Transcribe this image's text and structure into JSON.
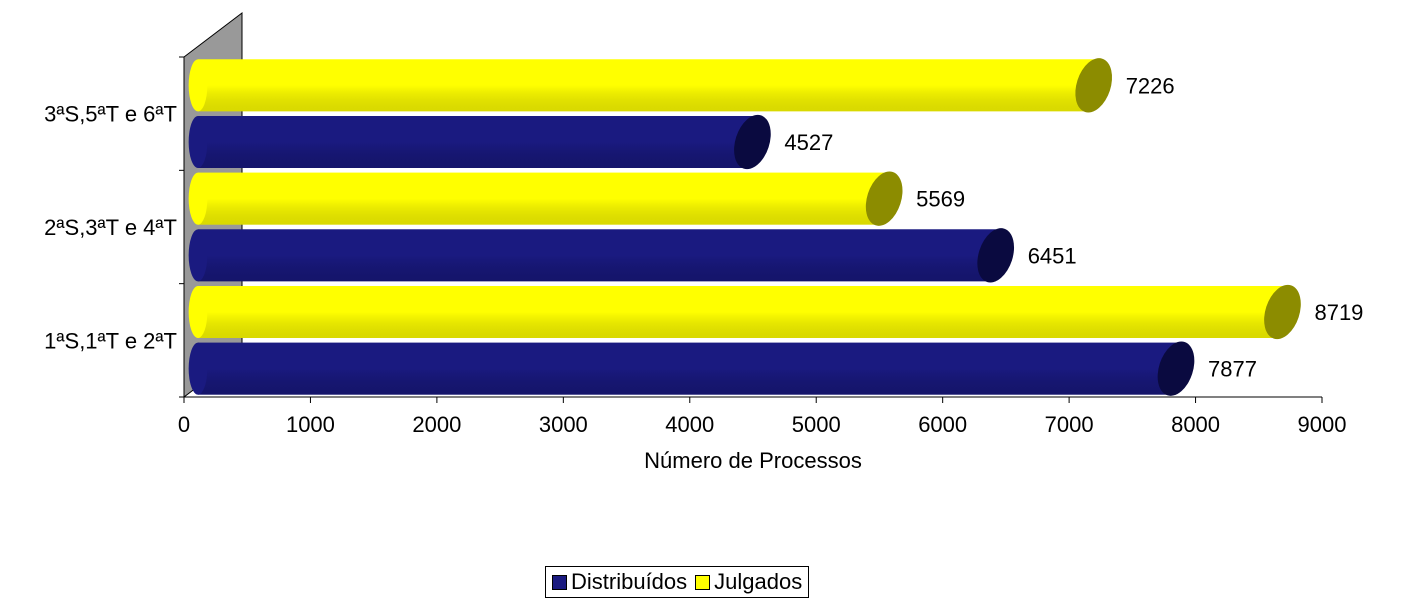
{
  "chart_data": {
    "type": "bar",
    "orientation": "horizontal",
    "style": "3d-cylinder",
    "categories": [
      "1ªS,1ªT e 2ªT",
      "2ªS,3ªT e 4ªT",
      "3ªS,5ªT e 6ªT"
    ],
    "series": [
      {
        "name": "Distribuídos",
        "values": [
          7877,
          6451,
          4527
        ],
        "color": "#1a1a80",
        "dark": "#0a0a40"
      },
      {
        "name": "Julgados",
        "values": [
          8719,
          5569,
          7226
        ],
        "color": "#ffff00",
        "dark": "#8c8c00"
      }
    ],
    "xlabel": "Número de Processos",
    "ylabel": "",
    "xlim": [
      0,
      9000
    ],
    "xticks": [
      0,
      1000,
      2000,
      3000,
      4000,
      5000,
      6000,
      7000,
      8000,
      9000
    ],
    "grid": false,
    "legend_position": "bottom"
  }
}
